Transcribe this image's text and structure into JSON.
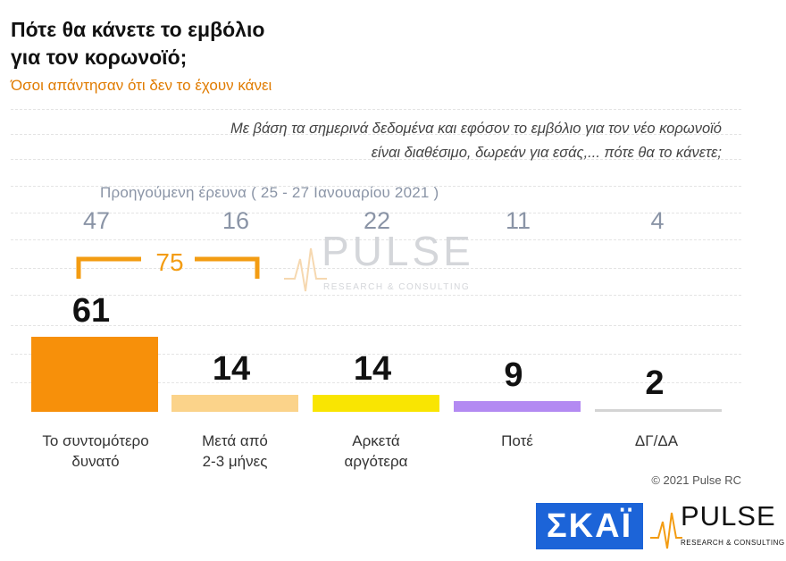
{
  "header": {
    "title_line1": "Πότε θα κάνετε το εμβόλιο",
    "title_line2": "για τον κορωνοϊό;",
    "subtitle": "Όσοι απάντησαν ότι δεν το έχουν κάνει"
  },
  "question": {
    "line1": "Με βάση τα σημερινά δεδομένα και εφόσον το εμβόλιο για τον νέο κορωνοϊό",
    "line2": "είναι διαθέσιμο, δωρεάν για εσάς,... πότε θα το κάνετε;"
  },
  "previous": {
    "label": "Προηγούμενη έρευνα  ( 25 - 27  Ιανουαρίου  2021 )",
    "values": [
      "47",
      "16",
      "22",
      "11",
      "4"
    ]
  },
  "bracket": {
    "value": "75",
    "color": "#f39c12"
  },
  "watermark": {
    "name": "PULSE",
    "tagline": "RESEARCH & CONSULTING"
  },
  "copyright": "© 2021 Pulse RC",
  "logos": {
    "skai": "ΣΚΑΪ",
    "pulse": "PULSE",
    "pulse_tagline": "RESEARCH & CONSULTING"
  },
  "chart_data": {
    "type": "bar",
    "title": "Πότε θα κάνετε το εμβόλιο για τον κορωνοϊό;",
    "categories": [
      {
        "line1": "Το συντομότερο",
        "line2": "δυνατό"
      },
      {
        "line1": "Μετά από",
        "line2": "2-3 μήνες"
      },
      {
        "line1": "Αρκετά",
        "line2": "αργότερα"
      },
      {
        "line1": "Ποτέ",
        "line2": ""
      },
      {
        "line1": "ΔΓ/ΔΑ",
        "line2": ""
      }
    ],
    "values": [
      61,
      14,
      14,
      9,
      2
    ],
    "previous_values": [
      47,
      16,
      22,
      11,
      4
    ],
    "colors": [
      "#f7900a",
      "#fbd38a",
      "#f9e502",
      "#b38af2",
      "#d4d4d4"
    ],
    "ylim": [
      0,
      61
    ]
  }
}
